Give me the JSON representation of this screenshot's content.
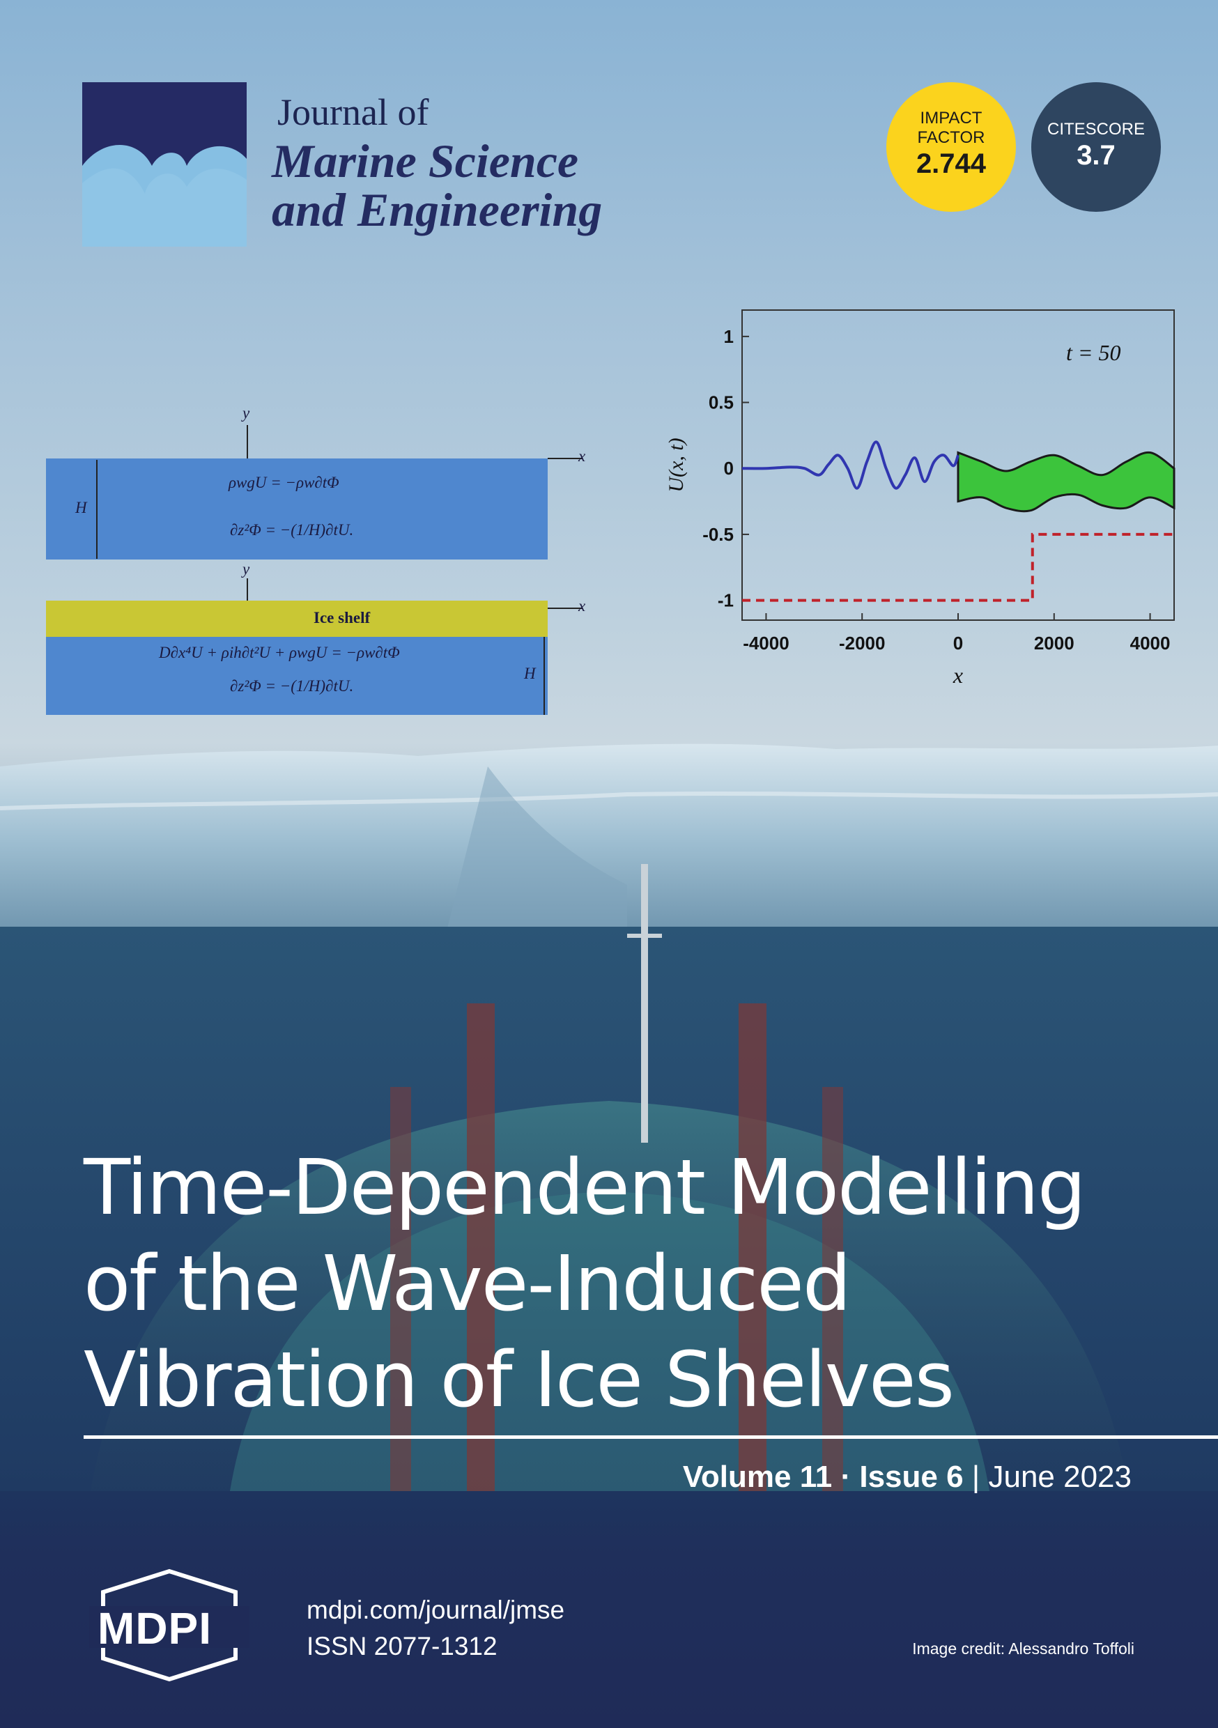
{
  "journal": {
    "line1": "Journal of",
    "line2": "Marine Science",
    "line3": "and Engineering"
  },
  "impact_factor": {
    "label1": "IMPACT",
    "label2": "FACTOR",
    "value": "2.744"
  },
  "citescore": {
    "label": "CITESCORE",
    "value": "3.7"
  },
  "diagram": {
    "y_label_top": "y",
    "x_label_top": "x",
    "h_label_top": "H",
    "eq_top_1": "ρwgU = −ρw∂tΦ",
    "eq_top_2": "∂z²Φ = −(1/H)∂tU.",
    "y_label_bottom": "y",
    "x_label_bottom": "x",
    "ice_label": "Ice shelf",
    "eq_bottom_1": "D∂x⁴U + ρih∂t²U + ρwgU = −ρw∂tΦ",
    "eq_bottom_2": "∂z²Φ = −(1/H)∂tU.",
    "h_label_bottom": "H"
  },
  "chart_data": {
    "type": "line",
    "title": "",
    "annotation": "t = 50",
    "xlabel": "x",
    "ylabel": "U(x, t)",
    "xlim": [
      -4500,
      4500
    ],
    "ylim": [
      -1.15,
      1.2
    ],
    "x_ticks": [
      "-4000",
      "-2000",
      "0",
      "2000",
      "4000"
    ],
    "y_ticks": [
      "1",
      "0.5",
      "0",
      "-0.5",
      "-1"
    ],
    "incident_wave": {
      "x": [
        -4500,
        -4000,
        -3500,
        -3200,
        -2900,
        -2700,
        -2500,
        -2300,
        -2100,
        -1900,
        -1700,
        -1500,
        -1300,
        -1100,
        -900,
        -700,
        -500,
        -300,
        -100,
        0
      ],
      "y": [
        0,
        0,
        0.01,
        0.0,
        -0.05,
        0.03,
        0.1,
        0.0,
        -0.15,
        0.05,
        0.2,
        0.0,
        -0.15,
        -0.05,
        0.08,
        -0.1,
        0.05,
        0.1,
        0.02,
        0.1
      ]
    },
    "ice_band_upper": {
      "x": [
        0,
        500,
        1000,
        1500,
        2000,
        2500,
        3000,
        3500,
        4000,
        4500
      ],
      "y": [
        0.12,
        0.05,
        -0.02,
        0.05,
        0.1,
        0.02,
        -0.05,
        0.05,
        0.12,
        0.0
      ]
    },
    "ice_band_lower": {
      "x": [
        0,
        500,
        1000,
        1500,
        2000,
        2500,
        3000,
        3500,
        4000,
        4500
      ],
      "y": [
        -0.25,
        -0.22,
        -0.3,
        -0.32,
        -0.22,
        -0.2,
        -0.28,
        -0.3,
        -0.22,
        -0.3
      ]
    },
    "bathymetry": {
      "x": [
        -4500,
        1550,
        1550,
        4500
      ],
      "y": [
        -1,
        -1,
        -0.5,
        -0.5
      ]
    }
  },
  "title": {
    "line1": "Time-Dependent Modelling",
    "line2": "of the Wave-Induced",
    "line3": "Vibration of Ice Shelves"
  },
  "issue": {
    "volume": "Volume 11",
    "separator": " · ",
    "issue": "Issue 6",
    "divider": " | ",
    "date": "June 2023"
  },
  "footer": {
    "mdpi": "MDPI",
    "url": "mdpi.com/journal/jmse",
    "issn": "ISSN 2077-1312",
    "credit": "Image credit: Alessandro Toffoli"
  }
}
